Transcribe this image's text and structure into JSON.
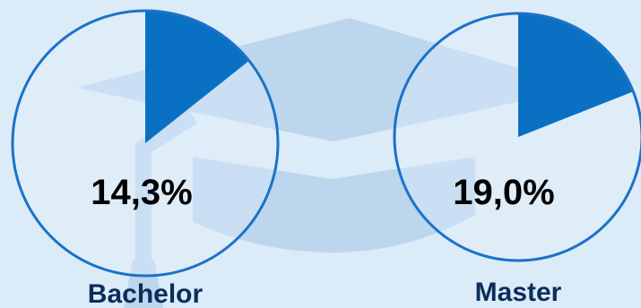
{
  "colors": {
    "background": "#dcebf8",
    "watermark": "#bcd6ee",
    "slice": "#0a70c4",
    "ring": "#1a73c8",
    "pie_face": "#e6f1fb",
    "percent_text": "#000000",
    "label_text": "#0b2d5a"
  },
  "background_icon": "graduation-cap-icon",
  "chart_data": [
    {
      "type": "pie",
      "name": "Bachelor",
      "value": 14.3,
      "value_label": "14,3%",
      "categories": [
        "Bachelor"
      ]
    },
    {
      "type": "pie",
      "name": "Master",
      "value": 19.0,
      "value_label": "19,0%",
      "categories": [
        "Master"
      ]
    }
  ]
}
